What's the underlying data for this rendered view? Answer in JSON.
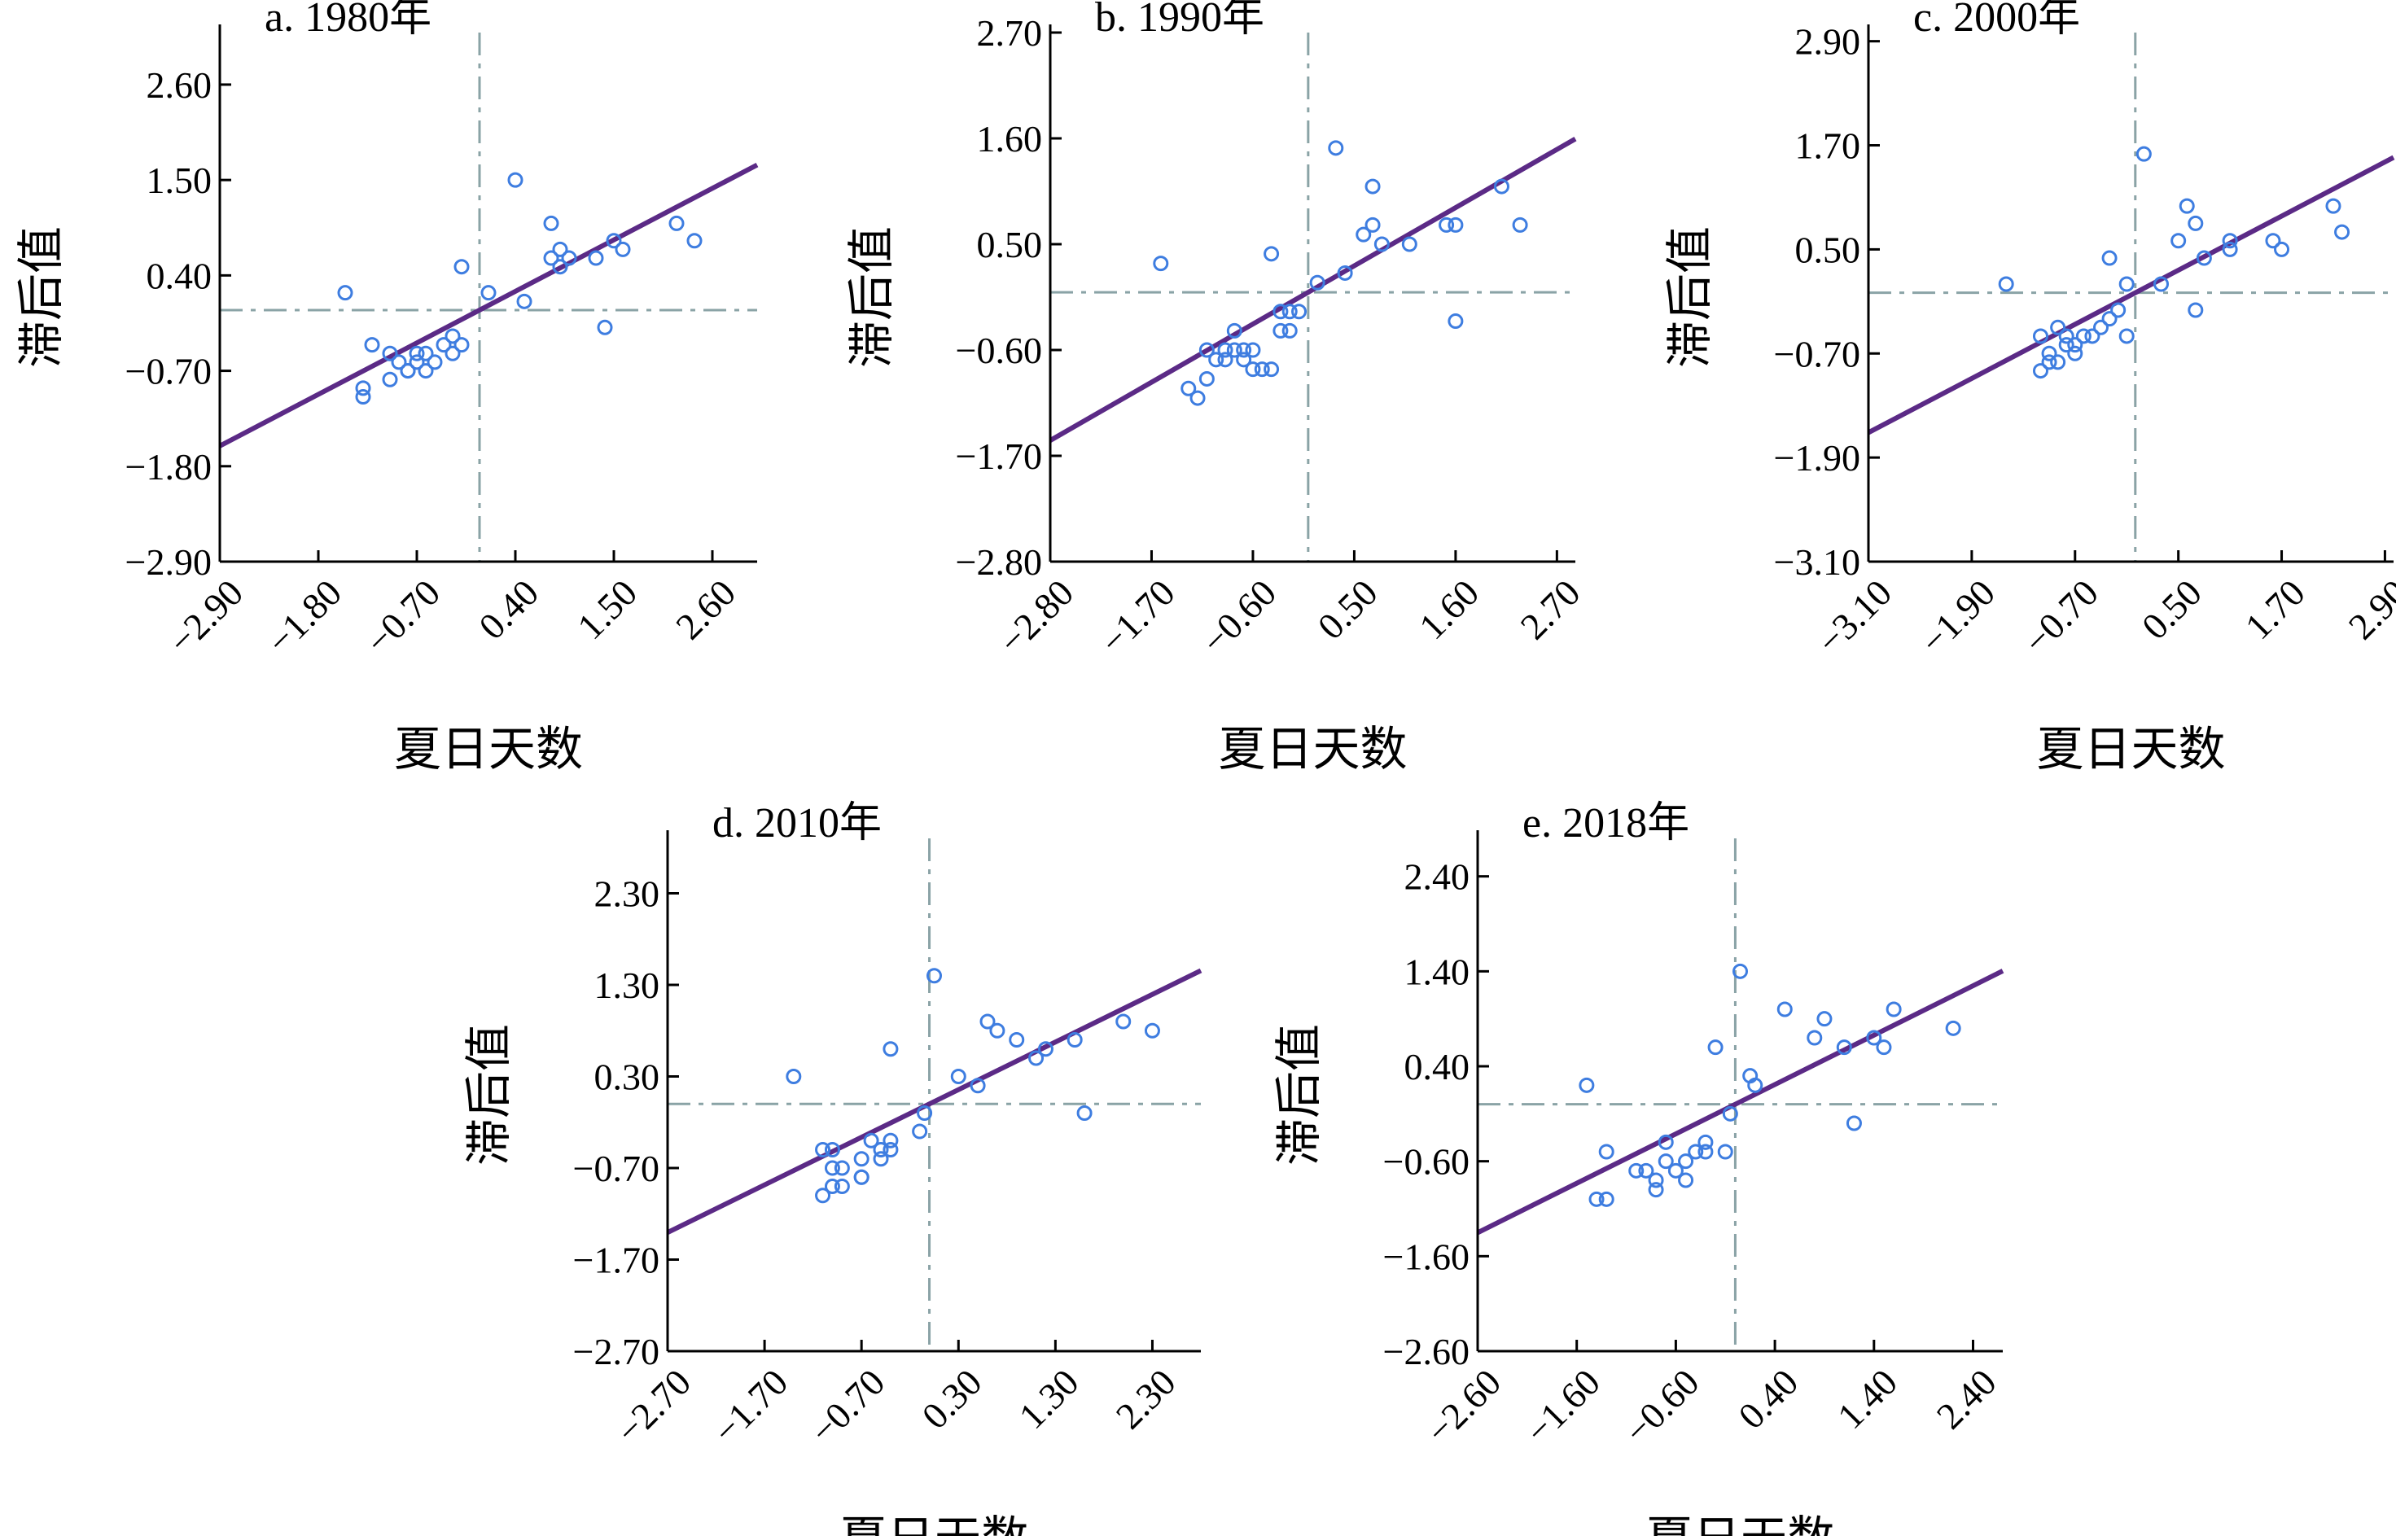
{
  "figure": {
    "x_label": "夏日天数",
    "y_label": "滞后值"
  },
  "colors": {
    "points": "#3e7de0",
    "fit_line": "#5b2a86",
    "guides": "#8aa3a6",
    "axis": "#000000"
  },
  "chart_data": [
    {
      "type": "scatter",
      "title": "a. 1980年",
      "xlabel": "夏日天数",
      "ylabel": "滞后值",
      "xlim": [
        -2.9,
        3.1
      ],
      "ylim": [
        -2.9,
        3.2
      ],
      "xticks": [
        -2.9,
        -1.8,
        -0.7,
        0.4,
        1.5,
        2.6
      ],
      "yticks": [
        -2.9,
        -1.8,
        -0.7,
        0.4,
        1.5,
        2.6
      ],
      "tick_labels_x": [
        "−2.90",
        "−1.80",
        "−0.70",
        "0.40",
        "1.50",
        "2.60"
      ],
      "tick_labels_y": [
        "−2.90",
        "−1.80",
        "−0.70",
        "0.40",
        "1.50",
        "2.60"
      ],
      "guide_x": 0.0,
      "guide_y": 0.0,
      "fit": {
        "slope": 0.54,
        "intercept": 0.0
      },
      "x": [
        -1.5,
        -1.3,
        -1.3,
        -1.2,
        -1.0,
        -1.0,
        -0.9,
        -0.8,
        -0.8,
        -0.7,
        -0.7,
        -0.6,
        -0.6,
        -0.5,
        -0.4,
        -0.3,
        -0.3,
        -0.2,
        -0.2,
        0.1,
        0.4,
        0.5,
        0.8,
        0.8,
        0.9,
        0.9,
        1.0,
        1.3,
        1.4,
        1.5,
        1.6,
        2.2,
        2.4
      ],
      "y": [
        0.2,
        -0.9,
        -1.0,
        -0.4,
        -0.5,
        -0.8,
        -0.6,
        -0.7,
        -0.7,
        -0.6,
        -0.5,
        -0.5,
        -0.7,
        -0.6,
        -0.4,
        -0.3,
        -0.5,
        -0.4,
        0.5,
        0.2,
        1.5,
        0.1,
        1.0,
        0.6,
        0.5,
        0.7,
        0.6,
        0.6,
        -0.2,
        0.8,
        0.7,
        1.0,
        0.8
      ]
    },
    {
      "type": "scatter",
      "title": "b. 1990年",
      "xlabel": "夏日天数",
      "ylabel": "滞后值",
      "xlim": [
        -2.8,
        2.9
      ],
      "ylim": [
        -2.8,
        2.7
      ],
      "xticks": [
        -2.8,
        -1.7,
        -0.6,
        0.5,
        1.6,
        2.7
      ],
      "yticks": [
        -2.8,
        -1.7,
        -0.6,
        0.5,
        1.6,
        2.7
      ],
      "tick_labels_x": [
        "−2.80",
        "−1.70",
        "−0.60",
        "0.50",
        "1.60",
        "2.70"
      ],
      "tick_labels_y": [
        "−2.80",
        "−1.70",
        "−0.60",
        "0.50",
        "1.60",
        "2.70"
      ],
      "guide_x": 0.0,
      "guide_y": 0.0,
      "fit": {
        "slope": 0.55,
        "intercept": 0.0
      },
      "x": [
        -1.6,
        -1.3,
        -1.2,
        -1.1,
        -1.1,
        -1.0,
        -0.9,
        -0.9,
        -0.8,
        -0.8,
        -0.7,
        -0.7,
        -0.6,
        -0.6,
        -0.5,
        -0.4,
        -0.4,
        -0.3,
        -0.3,
        -0.2,
        -0.2,
        -0.1,
        0.1,
        0.3,
        0.4,
        0.6,
        0.7,
        0.7,
        0.8,
        1.1,
        1.5,
        1.6,
        1.6,
        2.1,
        2.3
      ],
      "y": [
        0.3,
        -1.0,
        -1.1,
        -0.6,
        -0.9,
        -0.7,
        -0.6,
        -0.7,
        -0.4,
        -0.6,
        -0.7,
        -0.6,
        -0.8,
        -0.6,
        -0.8,
        -0.8,
        0.4,
        -0.4,
        -0.2,
        -0.4,
        -0.2,
        -0.2,
        0.1,
        1.5,
        0.2,
        0.6,
        1.1,
        0.7,
        0.5,
        0.5,
        0.7,
        -0.3,
        0.7,
        1.1,
        0.7
      ]
    },
    {
      "type": "scatter",
      "title": "c. 2000年",
      "xlabel": "夏日天数",
      "ylabel": "滞后值",
      "xlim": [
        -3.1,
        3.0
      ],
      "ylim": [
        -3.1,
        3.0
      ],
      "xticks": [
        -3.1,
        -1.9,
        -0.7,
        0.5,
        1.7,
        2.9
      ],
      "yticks": [
        -3.1,
        -1.9,
        -0.7,
        0.5,
        1.7,
        2.9
      ],
      "tick_labels_x": [
        "−3.10",
        "−1.90",
        "−0.70",
        "0.50",
        "1.70",
        "2.90"
      ],
      "tick_labels_y": [
        "−3.10",
        "−1.90",
        "−0.70",
        "0.50",
        "1.70",
        "2.90"
      ],
      "guide_x": 0.0,
      "guide_y": 0.0,
      "fit": {
        "slope": 0.52,
        "intercept": 0.0
      },
      "x": [
        -1.5,
        -1.1,
        -1.1,
        -1.0,
        -1.0,
        -0.9,
        -0.9,
        -0.8,
        -0.8,
        -0.7,
        -0.7,
        -0.6,
        -0.5,
        -0.4,
        -0.3,
        -0.3,
        -0.2,
        -0.1,
        -0.1,
        0.1,
        0.3,
        0.5,
        0.6,
        0.7,
        0.7,
        0.8,
        1.1,
        1.1,
        1.6,
        1.7,
        2.3,
        2.4
      ],
      "y": [
        0.1,
        -0.9,
        -0.5,
        -0.8,
        -0.7,
        -0.8,
        -0.4,
        -0.5,
        -0.6,
        -0.6,
        -0.7,
        -0.5,
        -0.5,
        -0.4,
        -0.3,
        0.4,
        -0.2,
        -0.5,
        0.1,
        1.6,
        0.1,
        0.6,
        1.0,
        0.8,
        -0.2,
        0.4,
        0.6,
        0.5,
        0.6,
        0.5,
        1.0,
        0.7
      ]
    },
    {
      "type": "scatter",
      "title": "d. 2010年",
      "xlabel": "夏日天数",
      "ylabel": "滞后值",
      "xlim": [
        -2.7,
        2.8
      ],
      "ylim": [
        -2.7,
        2.9
      ],
      "xticks": [
        -2.7,
        -1.7,
        -0.7,
        0.3,
        1.3,
        2.3
      ],
      "yticks": [
        -2.7,
        -1.7,
        -0.7,
        0.3,
        1.3,
        2.3
      ],
      "tick_labels_x": [
        "−2.70",
        "−1.70",
        "−0.70",
        "0.30",
        "1.30",
        "2.30"
      ],
      "tick_labels_y": [
        "−2.70",
        "−1.70",
        "−0.70",
        "0.30",
        "1.30",
        "2.30"
      ],
      "guide_x": 0.0,
      "guide_y": 0.0,
      "fit": {
        "slope": 0.52,
        "intercept": 0.0
      },
      "x": [
        -1.4,
        -1.1,
        -1.1,
        -1.0,
        -1.0,
        -1.0,
        -0.9,
        -0.9,
        -0.7,
        -0.7,
        -0.7,
        -0.6,
        -0.5,
        -0.5,
        -0.4,
        -0.4,
        -0.4,
        -0.1,
        -0.05,
        0.05,
        0.3,
        0.5,
        0.6,
        0.7,
        0.9,
        1.1,
        1.2,
        1.5,
        1.6,
        2.0,
        2.3
      ],
      "y": [
        0.3,
        -0.5,
        -1.0,
        -0.9,
        -0.7,
        -0.5,
        -0.9,
        -0.7,
        -0.6,
        -0.8,
        -0.8,
        -0.4,
        -0.5,
        -0.6,
        -0.4,
        -0.5,
        0.6,
        -0.3,
        -0.1,
        1.4,
        0.3,
        0.2,
        0.9,
        0.8,
        0.7,
        0.5,
        0.6,
        0.7,
        -0.1,
        0.9,
        0.8
      ]
    },
    {
      "type": "scatter",
      "title": "e. 2018年",
      "xlabel": "夏日天数",
      "ylabel": "滞后值",
      "xlim": [
        -2.6,
        2.7
      ],
      "ylim": [
        -2.6,
        2.8
      ],
      "xticks": [
        -2.6,
        -1.6,
        -0.6,
        0.4,
        1.4,
        2.4
      ],
      "yticks": [
        -2.6,
        -1.6,
        -0.6,
        0.4,
        1.4,
        2.4
      ],
      "tick_labels_x": [
        "−2.60",
        "−1.60",
        "−0.60",
        "0.40",
        "1.40",
        "2.40"
      ],
      "tick_labels_y": [
        "−2.60",
        "−1.60",
        "−0.60",
        "0.40",
        "1.40",
        "2.40"
      ],
      "guide_x": 0.0,
      "guide_y": 0.0,
      "fit": {
        "slope": 0.52,
        "intercept": 0.0
      },
      "x": [
        -1.5,
        -1.4,
        -1.3,
        -1.3,
        -1.0,
        -0.9,
        -0.8,
        -0.8,
        -0.7,
        -0.7,
        -0.6,
        -0.5,
        -0.5,
        -0.4,
        -0.3,
        -0.3,
        -0.2,
        -0.1,
        -0.05,
        0.05,
        0.15,
        0.2,
        0.5,
        0.8,
        0.9,
        1.1,
        1.2,
        1.4,
        1.5,
        1.6,
        2.2
      ],
      "y": [
        0.2,
        -1.0,
        -1.0,
        -0.5,
        -0.7,
        -0.7,
        -0.9,
        -0.8,
        -0.4,
        -0.6,
        -0.7,
        -0.8,
        -0.6,
        -0.5,
        -0.4,
        -0.5,
        0.6,
        -0.5,
        -0.1,
        1.4,
        0.3,
        0.2,
        1.0,
        0.7,
        0.9,
        0.6,
        -0.2,
        0.7,
        0.6,
        1.0,
        0.8
      ]
    }
  ]
}
